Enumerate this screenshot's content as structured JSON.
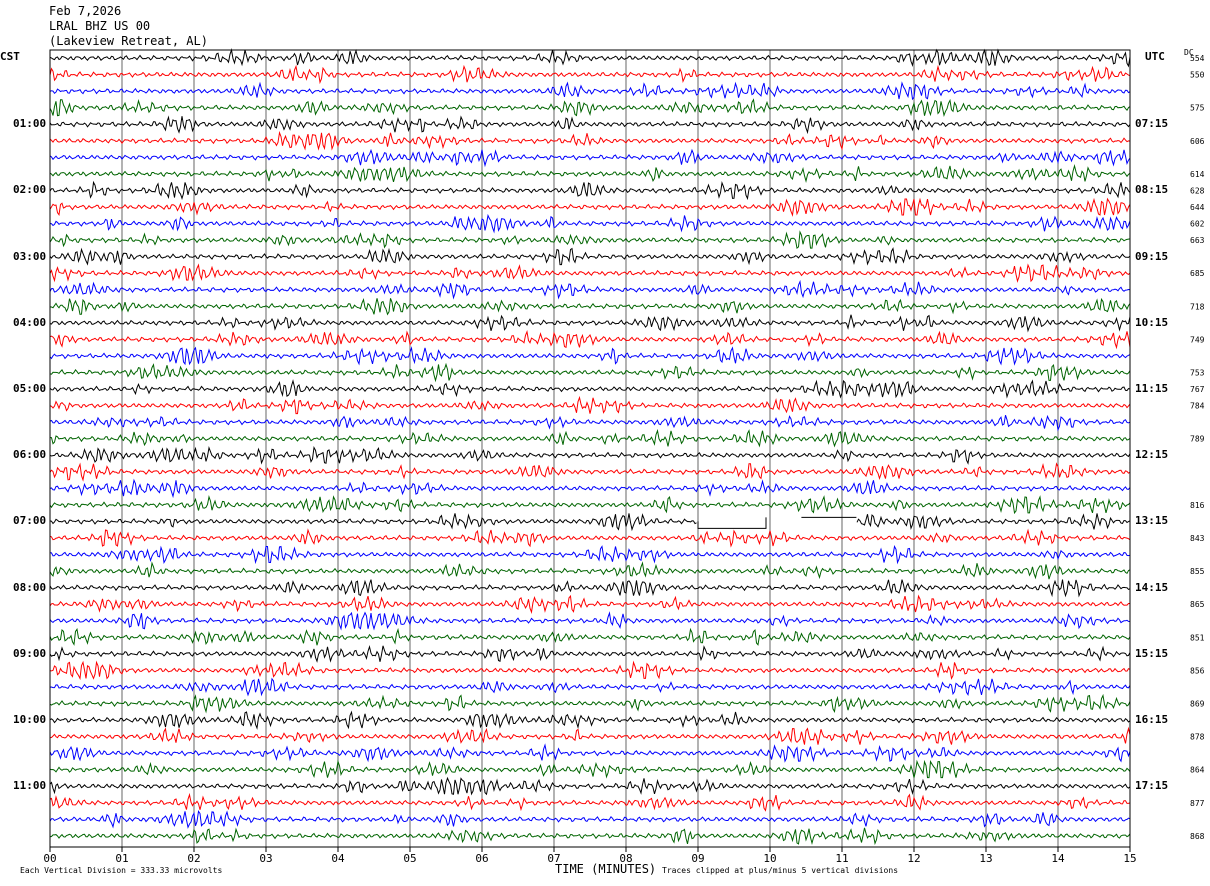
{
  "header": {
    "date": "Feb 7,2026",
    "station": "LRAL BHZ US 00",
    "location": "(Lakeview Retreat, AL)"
  },
  "left_axis_label": "CST",
  "right_axis_label": "UTC",
  "dc_label": "DC",
  "footer": {
    "scale_note": "Each Vertical Division =  333.33 microvolts",
    "xlabel": "TIME (MINUTES)",
    "clip_note": "Traces clipped at plus/minus 5 vertical divisions"
  },
  "chart_data": {
    "type": "line",
    "title": "",
    "xlabel": "TIME (MINUTES)",
    "x_ticks": [
      "00",
      "01",
      "02",
      "03",
      "04",
      "05",
      "06",
      "07",
      "08",
      "09",
      "10",
      "11",
      "12",
      "13",
      "14",
      "15"
    ],
    "xlim": [
      0,
      15
    ],
    "trace_count": 48,
    "trace_minutes": 15,
    "trace_colors": [
      "#000000",
      "#ff0000",
      "#0000ff",
      "#006400"
    ],
    "left_hour_labels": [
      "01:00",
      "02:00",
      "03:00",
      "04:00",
      "05:00",
      "06:00",
      "07:00",
      "08:00",
      "09:00",
      "10:00",
      "11:00"
    ],
    "right_hour_labels": [
      "07:15",
      "08:15",
      "09:15",
      "10:15",
      "11:15",
      "12:15",
      "13:15",
      "14:15",
      "15:15",
      "16:15",
      "17:15"
    ],
    "dc_offsets": [
      "554",
      "550",
      "",
      "575",
      "",
      "606",
      "",
      "614",
      "628",
      "644",
      "602",
      "663",
      "",
      "685",
      "",
      "718",
      "",
      "749",
      "",
      "753",
      "767",
      "784",
      "",
      "789",
      "",
      "",
      "",
      "816",
      "",
      "843",
      "",
      "855",
      "",
      "865",
      "",
      "851",
      "",
      "856",
      "",
      "869",
      "",
      "878",
      "",
      "864",
      "",
      "877",
      "",
      "868"
    ],
    "gap": {
      "trace_index": 28,
      "start_minute": 9.0,
      "end_minute": 11.2
    },
    "grid": true
  }
}
